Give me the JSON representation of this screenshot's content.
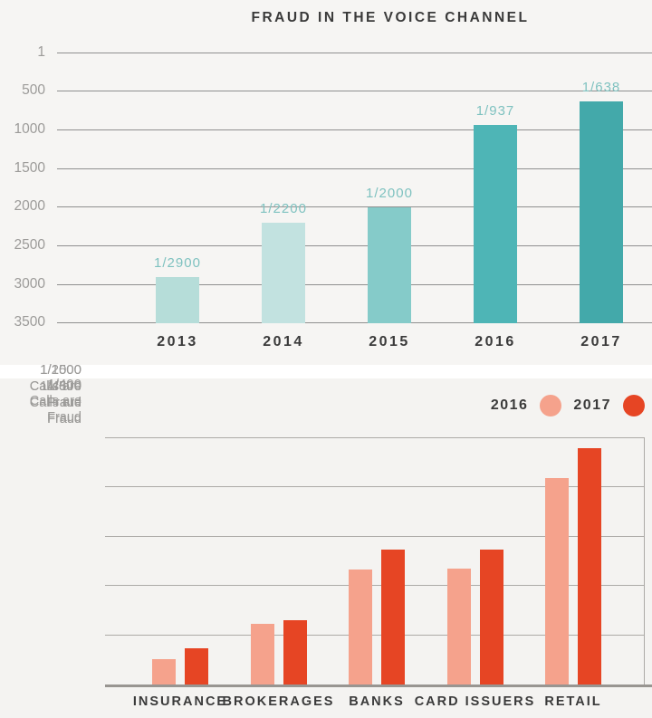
{
  "chart_data": [
    {
      "type": "bar",
      "title": "FRAUD IN THE VOICE CHANNEL",
      "categories": [
        "2013",
        "2014",
        "2015",
        "2016",
        "2017"
      ],
      "values": [
        2900,
        2200,
        2000,
        937,
        638
      ],
      "value_labels": [
        "1/2900",
        "1/2200",
        "1/2000",
        "1/937",
        "1/638"
      ],
      "bar_colors": [
        "#B6DDD9",
        "#C2E2E0",
        "#85CBC9",
        "#4EB5B6",
        "#43A9AA"
      ],
      "value_label_color": "#7FC2C0",
      "y_axis": {
        "ticks": [
          "1",
          "500",
          "1000",
          "1500",
          "2000",
          "2500",
          "3000",
          "3500"
        ],
        "range": [
          1,
          3500
        ],
        "inverted": true,
        "unit": "1 in N calls is fraud",
        "grid": true
      },
      "legend_position": "none"
    },
    {
      "type": "grouped_bar",
      "categories": [
        "INSURANCE",
        "BROKERAGES",
        "BANKS",
        "CARD ISSUERS",
        "RETAIL"
      ],
      "series": [
        {
          "name": "2016",
          "color": "#F5A28C",
          "height_frac": [
            0.103,
            0.245,
            0.465,
            0.469,
            0.835
          ]
        },
        {
          "name": "2017",
          "color": "#E64524",
          "height_frac": [
            0.147,
            0.26,
            0.546,
            0.546,
            0.956
          ]
        }
      ],
      "y_ticks": [
        {
          "rate": "1/400",
          "caption": "Calls are Fraud"
        },
        {
          "rate": "1/800",
          "caption": "Calls are Fraud"
        },
        {
          "rate": "1/1500",
          "caption": "Calls are Fraud"
        },
        {
          "rate": "1/2000",
          "caption": "Calls are Fraud"
        },
        {
          "rate": "1/4500",
          "caption": "Calls are Fraud"
        }
      ],
      "legend": [
        {
          "label": "2016",
          "color": "#F5A28C"
        },
        {
          "label": "2017",
          "color": "#E64524"
        }
      ],
      "legend_position": "top-right",
      "grid": true
    }
  ]
}
